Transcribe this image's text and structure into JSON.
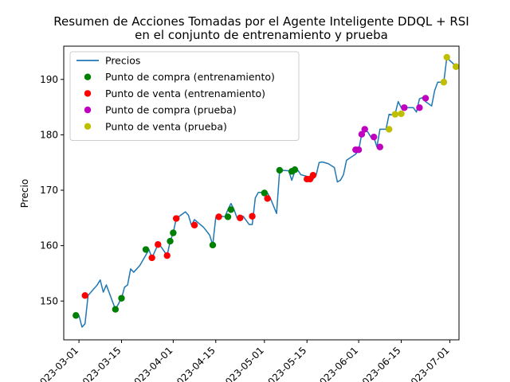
{
  "chart_data": {
    "type": "line",
    "title": "Resumen de Acciones Tomadas por el Agente Inteligente DDQL + RSI",
    "subtitle": "en el conjunto de entrenamiento y prueba",
    "xlabel": "",
    "ylabel": "Precio",
    "xlim": [
      "2023-02-24",
      "2023-07-04"
    ],
    "ylim": [
      143,
      196
    ],
    "x_ticks": [
      "2023-03-01",
      "2023-03-15",
      "2023-04-01",
      "2023-04-15",
      "2023-05-01",
      "2023-05-15",
      "2023-06-01",
      "2023-06-15",
      "2023-07-01"
    ],
    "x_tick_labels": [
      "2023-03-01",
      "2023-03-15",
      "2023-04-01",
      "2023-04-15",
      "2023-05-01",
      "2023-05-15",
      "2023-06-01",
      "2023-06-15",
      "2023-07-01"
    ],
    "y_ticks": [
      150,
      160,
      170,
      180,
      190
    ],
    "grid": false,
    "legend_position": "top-left",
    "legend": [
      {
        "label": "Precios",
        "kind": "line",
        "color": "#1f77b4"
      },
      {
        "label": "Punto de compra (entrenamiento)",
        "kind": "marker",
        "color": "#008000"
      },
      {
        "label": "Punto de venta (entrenamiento)",
        "kind": "marker",
        "color": "#ff0000"
      },
      {
        "label": "Punto de compra (prueba)",
        "kind": "marker",
        "color": "#bf00bf"
      },
      {
        "label": "Punto de venta (prueba)",
        "kind": "marker",
        "color": "#bfbf00"
      }
    ],
    "series": [
      {
        "name": "Precios",
        "type": "line",
        "color": "#1f77b4",
        "points": [
          [
            "2023-03-01",
            147.4
          ],
          [
            "2023-03-02",
            145.3
          ],
          [
            "2023-03-03",
            145.9
          ],
          [
            "2023-03-04",
            151.0
          ],
          [
            "2023-03-07",
            152.9
          ],
          [
            "2023-03-08",
            153.8
          ],
          [
            "2023-03-09",
            151.6
          ],
          [
            "2023-03-10",
            152.9
          ],
          [
            "2023-03-13",
            148.5
          ],
          [
            "2023-03-14",
            149.5
          ],
          [
            "2023-03-15",
            150.5
          ],
          [
            "2023-03-16",
            152.5
          ],
          [
            "2023-03-17",
            152.9
          ],
          [
            "2023-03-18",
            155.8
          ],
          [
            "2023-03-19",
            155.2
          ],
          [
            "2023-03-21",
            156.4
          ],
          [
            "2023-03-23",
            158.3
          ],
          [
            "2023-03-24",
            159.3
          ],
          [
            "2023-03-25",
            157.8
          ],
          [
            "2023-03-27",
            160.2
          ],
          [
            "2023-03-28",
            159.8
          ],
          [
            "2023-03-30",
            158.2
          ],
          [
            "2023-03-31",
            160.8
          ],
          [
            "2023-04-01",
            162.3
          ],
          [
            "2023-04-02",
            164.9
          ],
          [
            "2023-04-04",
            165.7
          ],
          [
            "2023-04-05",
            166.1
          ],
          [
            "2023-04-06",
            165.5
          ],
          [
            "2023-04-07",
            163.7
          ],
          [
            "2023-04-08",
            164.7
          ],
          [
            "2023-04-11",
            163.3
          ],
          [
            "2023-04-13",
            161.9
          ],
          [
            "2023-04-14",
            160.1
          ],
          [
            "2023-04-15",
            165.1
          ],
          [
            "2023-04-16",
            165.4
          ],
          [
            "2023-04-18",
            165.2
          ],
          [
            "2023-04-19",
            166.5
          ],
          [
            "2023-04-20",
            167.6
          ],
          [
            "2023-04-21",
            166.5
          ],
          [
            "2023-04-22",
            165.0
          ],
          [
            "2023-04-24",
            165.3
          ],
          [
            "2023-04-26",
            163.8
          ],
          [
            "2023-04-27",
            163.8
          ],
          [
            "2023-04-28",
            168.6
          ],
          [
            "2023-04-29",
            169.6
          ],
          [
            "2023-05-01",
            169.6
          ],
          [
            "2023-05-02",
            169.5
          ],
          [
            "2023-05-03",
            168.5
          ],
          [
            "2023-05-05",
            165.8
          ],
          [
            "2023-05-06",
            173.5
          ],
          [
            "2023-05-07",
            173.6
          ],
          [
            "2023-05-09",
            173.5
          ],
          [
            "2023-05-10",
            171.8
          ],
          [
            "2023-05-11",
            173.4
          ],
          [
            "2023-05-12",
            173.6
          ],
          [
            "2023-05-13",
            172.8
          ],
          [
            "2023-05-15",
            172.5
          ],
          [
            "2023-05-16",
            172.0
          ],
          [
            "2023-05-17",
            172.0
          ],
          [
            "2023-05-18",
            172.7
          ],
          [
            "2023-05-19",
            175.0
          ],
          [
            "2023-05-20",
            175.1
          ],
          [
            "2023-05-22",
            174.8
          ],
          [
            "2023-05-24",
            174.1
          ],
          [
            "2023-05-25",
            171.5
          ],
          [
            "2023-05-26",
            171.8
          ],
          [
            "2023-05-27",
            172.8
          ],
          [
            "2023-05-28",
            175.4
          ],
          [
            "2023-05-31",
            176.5
          ],
          [
            "2023-06-01",
            177.2
          ],
          [
            "2023-06-02",
            180.1
          ],
          [
            "2023-06-03",
            181.0
          ],
          [
            "2023-06-04",
            180.5
          ],
          [
            "2023-06-05",
            179.6
          ],
          [
            "2023-06-06",
            179.6
          ],
          [
            "2023-06-07",
            177.8
          ],
          [
            "2023-06-08",
            181.0
          ],
          [
            "2023-06-10",
            181.0
          ],
          [
            "2023-06-11",
            183.7
          ],
          [
            "2023-06-12",
            183.6
          ],
          [
            "2023-06-13",
            183.8
          ],
          [
            "2023-06-14",
            186.0
          ],
          [
            "2023-06-15",
            184.9
          ],
          [
            "2023-06-16",
            184.9
          ],
          [
            "2023-06-19",
            184.9
          ],
          [
            "2023-06-20",
            184.1
          ],
          [
            "2023-06-21",
            186.5
          ],
          [
            "2023-06-22",
            186.7
          ],
          [
            "2023-06-23",
            186.0
          ],
          [
            "2023-06-25",
            185.2
          ],
          [
            "2023-06-26",
            188.0
          ],
          [
            "2023-06-27",
            189.5
          ],
          [
            "2023-06-29",
            189.5
          ],
          [
            "2023-06-30",
            194.0
          ],
          [
            "2023-07-01",
            193.4
          ],
          [
            "2023-07-02",
            192.9
          ],
          [
            "2023-07-03",
            192.3
          ]
        ]
      },
      {
        "name": "Punto de compra (entrenamiento)",
        "type": "scatter",
        "color": "#008000",
        "points": [
          [
            "2023-02-28",
            147.4
          ],
          [
            "2023-03-13",
            148.5
          ],
          [
            "2023-03-15",
            150.5
          ],
          [
            "2023-03-23",
            159.3
          ],
          [
            "2023-03-31",
            160.8
          ],
          [
            "2023-04-01",
            162.3
          ],
          [
            "2023-04-14",
            160.1
          ],
          [
            "2023-04-19",
            165.2
          ],
          [
            "2023-04-20",
            166.5
          ],
          [
            "2023-05-01",
            169.5
          ],
          [
            "2023-05-06",
            173.6
          ],
          [
            "2023-05-10",
            173.4
          ],
          [
            "2023-05-11",
            173.7
          ]
        ]
      },
      {
        "name": "Punto de venta (entrenamiento)",
        "type": "scatter",
        "color": "#ff0000",
        "points": [
          [
            "2023-03-03",
            151.0
          ],
          [
            "2023-03-25",
            157.8
          ],
          [
            "2023-03-27",
            160.2
          ],
          [
            "2023-03-30",
            158.2
          ],
          [
            "2023-04-02",
            164.9
          ],
          [
            "2023-04-08",
            163.7
          ],
          [
            "2023-04-16",
            165.2
          ],
          [
            "2023-04-23",
            165.0
          ],
          [
            "2023-04-27",
            165.3
          ],
          [
            "2023-05-02",
            168.5
          ],
          [
            "2023-05-15",
            172.0
          ],
          [
            "2023-05-16",
            172.0
          ],
          [
            "2023-05-17",
            172.7
          ]
        ]
      },
      {
        "name": "Punto de compra (prueba)",
        "type": "scatter",
        "color": "#bf00bf",
        "points": [
          [
            "2023-05-31",
            177.3
          ],
          [
            "2023-06-01",
            177.3
          ],
          [
            "2023-06-02",
            180.1
          ],
          [
            "2023-06-03",
            181.0
          ],
          [
            "2023-06-06",
            179.6
          ],
          [
            "2023-06-08",
            177.8
          ],
          [
            "2023-06-16",
            184.9
          ],
          [
            "2023-06-21",
            184.9
          ],
          [
            "2023-06-23",
            186.6
          ]
        ]
      },
      {
        "name": "Punto de venta (prueba)",
        "type": "scatter",
        "color": "#bfbf00",
        "points": [
          [
            "2023-06-11",
            181.0
          ],
          [
            "2023-06-13",
            183.7
          ],
          [
            "2023-06-15",
            183.8
          ],
          [
            "2023-06-29",
            189.5
          ],
          [
            "2023-06-30",
            194.0
          ],
          [
            "2023-07-03",
            192.3
          ]
        ]
      }
    ]
  }
}
